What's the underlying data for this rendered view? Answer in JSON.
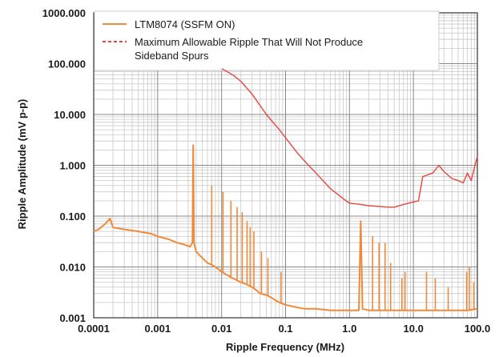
{
  "chart_data": {
    "type": "line",
    "title": "",
    "xlabel": "Ripple Frequency (MHz)",
    "ylabel": "Ripple Amplitude (mV p-p)",
    "x_scale": "log",
    "y_scale": "log",
    "xlim": [
      0.0001,
      100
    ],
    "ylim": [
      0.001,
      1000
    ],
    "x_ticks": [
      "0.0001",
      "0.001",
      "0.01",
      "0.1",
      "1.0",
      "10.0",
      "100.0"
    ],
    "y_ticks": [
      "0.001",
      "0.010",
      "0.100",
      "1.000",
      "10.000",
      "100.000",
      "1000.000"
    ],
    "grid": true,
    "legend_position": "top",
    "series": [
      {
        "name": "LTM8074 (SSFM ON)",
        "color": "#f08a3a",
        "style": "solid",
        "x": [
          0.0001,
          0.00012,
          0.00015,
          0.00018,
          0.0002,
          0.0003,
          0.0005,
          0.0008,
          0.001,
          0.0015,
          0.002,
          0.0025,
          0.0032,
          0.0035,
          0.0036,
          0.0037,
          0.004,
          0.005,
          0.006,
          0.007,
          0.008,
          0.009,
          0.01,
          0.012,
          0.015,
          0.02,
          0.025,
          0.03,
          0.035,
          0.04,
          0.05,
          0.06,
          0.07,
          0.08,
          0.1,
          0.15,
          0.2,
          0.3,
          0.5,
          0.8,
          1.0,
          1.4,
          1.5,
          1.6,
          2.0,
          3.0,
          5.0,
          7.0,
          10.0,
          15.0,
          20.0,
          30.0,
          50.0,
          70.0,
          100.0
        ],
        "y": [
          0.05,
          0.055,
          0.07,
          0.09,
          0.06,
          0.055,
          0.05,
          0.045,
          0.04,
          0.035,
          0.03,
          0.028,
          0.025,
          0.03,
          2.5,
          0.03,
          0.02,
          0.015,
          0.012,
          0.011,
          0.01,
          0.009,
          0.008,
          0.007,
          0.006,
          0.005,
          0.0045,
          0.004,
          0.0035,
          0.003,
          0.0028,
          0.0025,
          0.0022,
          0.002,
          0.0018,
          0.0016,
          0.0015,
          0.0015,
          0.0014,
          0.0014,
          0.0014,
          0.0014,
          0.08,
          0.0015,
          0.0014,
          0.0014,
          0.0014,
          0.0014,
          0.0014,
          0.0014,
          0.0014,
          0.0014,
          0.0014,
          0.0014,
          0.0015
        ],
        "spurs": [
          {
            "x": 0.0036,
            "y": 2.5
          },
          {
            "x": 0.007,
            "y": 0.4
          },
          {
            "x": 0.0105,
            "y": 0.3
          },
          {
            "x": 0.014,
            "y": 0.2
          },
          {
            "x": 0.0175,
            "y": 0.15
          },
          {
            "x": 0.021,
            "y": 0.12
          },
          {
            "x": 0.025,
            "y": 0.08
          },
          {
            "x": 0.028,
            "y": 0.06
          },
          {
            "x": 0.032,
            "y": 0.05
          },
          {
            "x": 0.042,
            "y": 0.02
          },
          {
            "x": 0.053,
            "y": 0.015
          },
          {
            "x": 0.085,
            "y": 0.008
          },
          {
            "x": 1.5,
            "y": 0.08
          },
          {
            "x": 2.3,
            "y": 0.04
          },
          {
            "x": 2.9,
            "y": 0.03
          },
          {
            "x": 3.6,
            "y": 0.03
          },
          {
            "x": 4.4,
            "y": 0.012
          },
          {
            "x": 6.6,
            "y": 0.006
          },
          {
            "x": 7.4,
            "y": 0.008
          },
          {
            "x": 16,
            "y": 0.008
          },
          {
            "x": 22,
            "y": 0.006
          },
          {
            "x": 35,
            "y": 0.004
          },
          {
            "x": 68,
            "y": 0.008
          },
          {
            "x": 75,
            "y": 0.01
          },
          {
            "x": 88,
            "y": 0.005
          }
        ]
      },
      {
        "name": "Maximum Allowable Ripple That Will Not Produce Sideband Spurs",
        "color": "#e8453c",
        "style": "solid",
        "x": [
          0.01,
          0.015,
          0.02,
          0.03,
          0.05,
          0.08,
          0.1,
          0.15,
          0.2,
          0.3,
          0.5,
          0.8,
          1.0,
          1.5,
          2.0,
          3.0,
          4.0,
          5.0,
          7.0,
          10.0,
          12.0,
          14.0,
          20.0,
          25.0,
          30.0,
          40.0,
          50.0,
          60.0,
          70.0,
          80.0,
          90.0,
          100.0
        ],
        "y": [
          80,
          60,
          45,
          25,
          10,
          5,
          3.5,
          1.8,
          1.2,
          0.7,
          0.35,
          0.22,
          0.18,
          0.17,
          0.16,
          0.155,
          0.15,
          0.15,
          0.17,
          0.19,
          0.2,
          0.6,
          0.7,
          1.0,
          0.75,
          0.55,
          0.5,
          0.45,
          0.7,
          0.5,
          0.9,
          1.5
        ]
      }
    ]
  }
}
